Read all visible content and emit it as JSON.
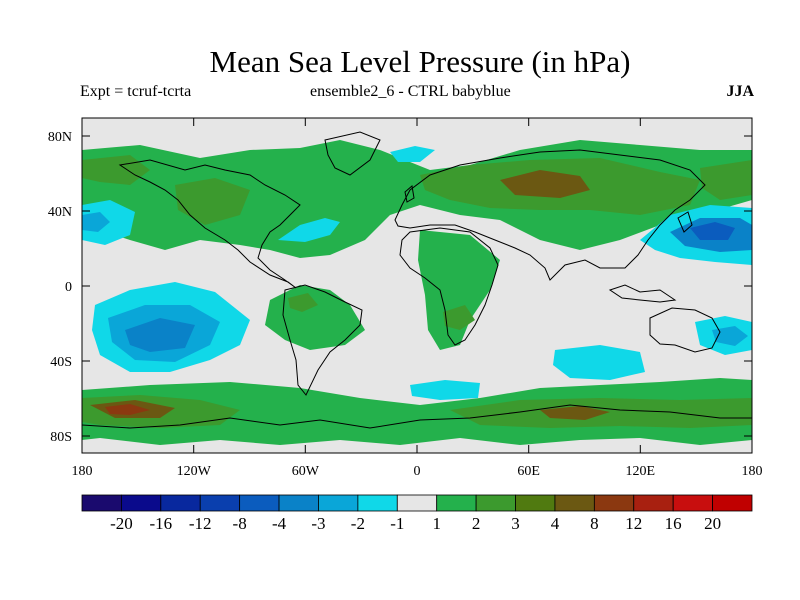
{
  "title": "Mean Sea Level Pressure (in hPa)",
  "subtitle_left": "Expt = tcruf-tcrta",
  "subtitle_center": "ensemble2_6 - CTRL babyblue",
  "season": "JJA",
  "lat_labels": [
    "80N",
    "40N",
    "0",
    "40S",
    "80S"
  ],
  "lon_labels": [
    "180",
    "120W",
    "60W",
    "0",
    "60E",
    "120E",
    "180"
  ],
  "colorbar": {
    "labels": [
      "-20",
      "-16",
      "-12",
      "-8",
      "-4",
      "-3",
      "-2",
      "-1",
      "1",
      "2",
      "3",
      "4",
      "8",
      "12",
      "16",
      "20"
    ],
    "colors": [
      "#1a0a6e",
      "#0a0a8c",
      "#08289e",
      "#0a3fae",
      "#0b5cbe",
      "#0a82c8",
      "#0aa6d8",
      "#10d8e8",
      "#e6e6e6",
      "#24b14c",
      "#3c9a2e",
      "#507a10",
      "#6b5812",
      "#8b3810",
      "#a82010",
      "#c80e0e",
      "#c00000"
    ]
  },
  "palette": {
    "neutral": "#e6e6e6",
    "g2": "#24b14c",
    "g3": "#3c9a2e",
    "g4": "#507a10",
    "b8": "#6b5812",
    "r12": "#8b3810",
    "c1": "#10d8e8",
    "c2": "#0aa6d8",
    "c3": "#0a82c8",
    "c4": "#0b5cbe"
  }
}
